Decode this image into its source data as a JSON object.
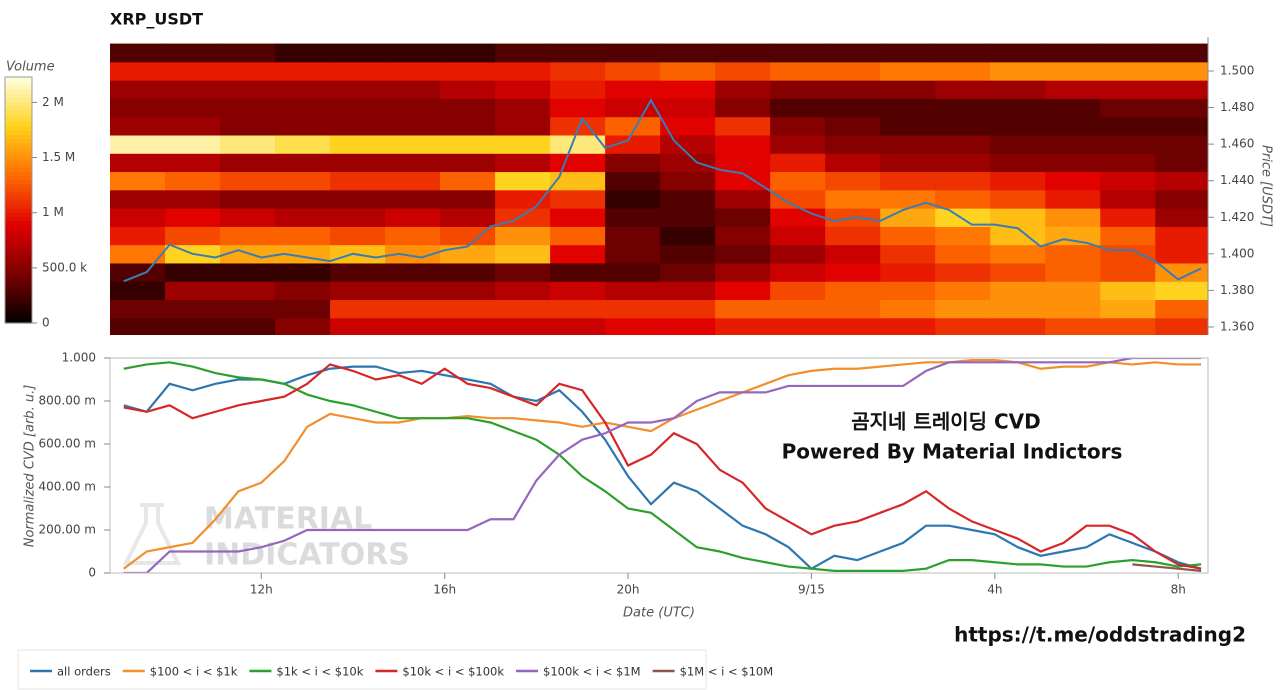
{
  "chart_data": [
    {
      "type": "heatmap",
      "title": "XRP_USDT",
      "colorbar_title": "Volume",
      "ylabel": "Price [USDT]",
      "colorscale": [
        "#000000",
        "#7a0000",
        "#e00000",
        "#ff6a00",
        "#ffd21a",
        "#ffffe0"
      ],
      "zlim": [
        0,
        2230000
      ],
      "zticks": [
        0,
        {
          "value": 500000,
          "label": "500.0 k"
        },
        {
          "value": 1000000,
          "label": "1 M"
        },
        {
          "value": 1500000,
          "label": "1.5 M"
        },
        {
          "value": 2000000,
          "label": "2 M"
        }
      ],
      "xlim": [
        8.7,
        32.65
      ],
      "ylim": [
        1.3556,
        1.5186
      ],
      "yticks": [
        {
          "value": 1.36,
          "label": "1.360"
        },
        {
          "value": 1.38,
          "label": "1.380"
        },
        {
          "value": 1.4,
          "label": "1.400"
        },
        {
          "value": 1.42,
          "label": "1.420"
        },
        {
          "value": 1.44,
          "label": "1.440"
        },
        {
          "value": 1.46,
          "label": "1.460"
        },
        {
          "value": 1.48,
          "label": "1.480"
        },
        {
          "value": 1.5,
          "label": "1.500"
        }
      ],
      "x": [
        9.3,
        10.5,
        11.7,
        12.9,
        14.1,
        15.3,
        16.5,
        17.7,
        18.9,
        20.1,
        21.3,
        22.5,
        23.7,
        24.9,
        26.1,
        27.3,
        28.5,
        29.7,
        30.9,
        32.1
      ],
      "y": [
        1.36,
        1.37,
        1.38,
        1.39,
        1.4,
        1.41,
        1.42,
        1.43,
        1.44,
        1.45,
        1.46,
        1.47,
        1.48,
        1.49,
        1.5,
        1.51
      ],
      "z": [
        [
          300000,
          300000,
          300000,
          500000,
          800000,
          800000,
          800000,
          800000,
          800000,
          900000,
          900000,
          1000000,
          1000000,
          1000000,
          1000000,
          1100000,
          1100000,
          1200000,
          1200000,
          1100000
        ],
        [
          400000,
          400000,
          400000,
          400000,
          1100000,
          1100000,
          1100000,
          1100000,
          1100000,
          1100000,
          1100000,
          1300000,
          1300000,
          1300000,
          1400000,
          1500000,
          1500000,
          1500000,
          1600000,
          1300000
        ],
        [
          200000,
          600000,
          600000,
          500000,
          600000,
          600000,
          600000,
          700000,
          800000,
          700000,
          700000,
          900000,
          1200000,
          1300000,
          1300000,
          1400000,
          1500000,
          1500000,
          1700000,
          1800000
        ],
        [
          300000,
          200000,
          200000,
          200000,
          300000,
          300000,
          300000,
          400000,
          300000,
          300000,
          400000,
          600000,
          800000,
          900000,
          1000000,
          1100000,
          1200000,
          1300000,
          1200000,
          1500000
        ],
        [
          1400000,
          1800000,
          1600000,
          1600000,
          1700000,
          1500000,
          1600000,
          1700000,
          900000,
          400000,
          300000,
          400000,
          600000,
          800000,
          1100000,
          1300000,
          1400000,
          1300000,
          1200000,
          1000000
        ],
        [
          1000000,
          1200000,
          1300000,
          1300000,
          1200000,
          1300000,
          1200000,
          1500000,
          1300000,
          400000,
          200000,
          500000,
          800000,
          1100000,
          1300000,
          1400000,
          1700000,
          1600000,
          1300000,
          1000000
        ],
        [
          800000,
          900000,
          800000,
          700000,
          700000,
          800000,
          700000,
          1100000,
          900000,
          300000,
          300000,
          400000,
          900000,
          1200000,
          1600000,
          1800000,
          1700000,
          1500000,
          1000000,
          600000
        ],
        [
          600000,
          600000,
          500000,
          500000,
          500000,
          500000,
          500000,
          1000000,
          1100000,
          200000,
          300000,
          600000,
          1200000,
          1400000,
          1400000,
          1300000,
          1200000,
          1000000,
          700000,
          500000
        ],
        [
          1400000,
          1300000,
          1200000,
          1200000,
          1100000,
          1100000,
          1300000,
          1800000,
          1700000,
          300000,
          500000,
          900000,
          1300000,
          1200000,
          1100000,
          1100000,
          1000000,
          900000,
          800000,
          700000
        ],
        [
          700000,
          700000,
          600000,
          600000,
          600000,
          600000,
          600000,
          700000,
          900000,
          500000,
          600000,
          900000,
          1000000,
          700000,
          600000,
          600000,
          500000,
          500000,
          500000,
          400000
        ],
        [
          2100000,
          2100000,
          2000000,
          1900000,
          1800000,
          1800000,
          1800000,
          1800000,
          2000000,
          1000000,
          700000,
          900000,
          600000,
          500000,
          500000,
          500000,
          400000,
          400000,
          400000,
          400000
        ],
        [
          600000,
          600000,
          500000,
          500000,
          500000,
          500000,
          500000,
          600000,
          1100000,
          1300000,
          900000,
          1100000,
          500000,
          400000,
          300000,
          300000,
          300000,
          300000,
          300000,
          300000
        ],
        [
          500000,
          500000,
          500000,
          500000,
          500000,
          500000,
          500000,
          600000,
          900000,
          800000,
          800000,
          500000,
          300000,
          300000,
          300000,
          300000,
          300000,
          300000,
          400000,
          400000
        ],
        [
          600000,
          600000,
          600000,
          600000,
          600000,
          600000,
          700000,
          800000,
          1000000,
          900000,
          900000,
          600000,
          500000,
          500000,
          500000,
          600000,
          600000,
          700000,
          700000,
          700000
        ],
        [
          1000000,
          1000000,
          1000000,
          1000000,
          1000000,
          1000000,
          1000000,
          1000000,
          1100000,
          1200000,
          1300000,
          1200000,
          1300000,
          1300000,
          1400000,
          1400000,
          1500000,
          1500000,
          1500000,
          1500000
        ],
        [
          300000,
          300000,
          300000,
          200000,
          200000,
          200000,
          200000,
          300000,
          300000,
          300000,
          300000,
          300000,
          300000,
          300000,
          300000,
          300000,
          300000,
          300000,
          300000,
          300000
        ]
      ],
      "price": {
        "color": "#3a7db5",
        "x": [
          9,
          9.5,
          10,
          10.5,
          11,
          11.5,
          12,
          12.5,
          13,
          13.5,
          14,
          14.5,
          15,
          15.5,
          16,
          16.5,
          17,
          17.5,
          18,
          18.5,
          19,
          19.5,
          20,
          20.5,
          21,
          21.5,
          22,
          22.5,
          23,
          23.5,
          24,
          24.5,
          25,
          25.5,
          26,
          26.5,
          27,
          27.5,
          28,
          28.5,
          29,
          29.5,
          30,
          30.5,
          31,
          31.5,
          32,
          32.5
        ],
        "values": [
          1.385,
          1.39,
          1.405,
          1.4,
          1.398,
          1.402,
          1.398,
          1.4,
          1.398,
          1.396,
          1.4,
          1.398,
          1.4,
          1.398,
          1.402,
          1.404,
          1.415,
          1.418,
          1.426,
          1.442,
          1.474,
          1.458,
          1.462,
          1.484,
          1.462,
          1.45,
          1.446,
          1.444,
          1.436,
          1.428,
          1.422,
          1.418,
          1.42,
          1.418,
          1.424,
          1.428,
          1.424,
          1.416,
          1.416,
          1.414,
          1.404,
          1.408,
          1.406,
          1.402,
          1.402,
          1.396,
          1.386,
          1.392
        ]
      }
    },
    {
      "type": "line",
      "ylabel": "Normalized CVD [arb. u.]",
      "xlabel": "Date (UTC)",
      "annotations": [
        "곰지네 트레이딩 CVD",
        "Powered By Material Indictors"
      ],
      "watermark": [
        "MATERIAL",
        "INDICATORS"
      ],
      "link": "https://t.me/oddstrading2",
      "xlim": [
        8.7,
        32.65
      ],
      "ylim": [
        0,
        1
      ],
      "xticks": [
        {
          "value": 12,
          "label": "12h"
        },
        {
          "value": 16,
          "label": "16h"
        },
        {
          "value": 20,
          "label": "20h"
        },
        {
          "value": 24,
          "label": "9/15"
        },
        {
          "value": 28,
          "label": "4h"
        },
        {
          "value": 32,
          "label": "8h"
        }
      ],
      "yticks": [
        0,
        {
          "value": 0.2,
          "label": "200.00 m"
        },
        {
          "value": 0.4,
          "label": "400.00 m"
        },
        {
          "value": 0.6,
          "label": "600.00 m"
        },
        {
          "value": 0.8,
          "label": "800.00 m"
        },
        {
          "value": 1,
          "label": "1.000"
        }
      ],
      "x": [
        9,
        9.5,
        10,
        10.5,
        11,
        11.5,
        12,
        12.5,
        13,
        13.5,
        14,
        14.5,
        15,
        15.5,
        16,
        16.5,
        17,
        17.5,
        18,
        18.5,
        19,
        19.5,
        20,
        20.5,
        21,
        21.5,
        22,
        22.5,
        23,
        23.5,
        24,
        24.5,
        25,
        25.5,
        26,
        26.5,
        27,
        27.5,
        28,
        28.5,
        29,
        29.5,
        30,
        30.5,
        31,
        31.5,
        32,
        32.5
      ],
      "series": [
        {
          "name": "all orders",
          "color": "#2c77b0",
          "values": [
            0.78,
            0.75,
            0.88,
            0.85,
            0.88,
            0.9,
            0.9,
            0.88,
            0.92,
            0.95,
            0.96,
            0.96,
            0.93,
            0.94,
            0.92,
            0.9,
            0.88,
            0.82,
            0.8,
            0.85,
            0.75,
            0.62,
            0.45,
            0.32,
            0.42,
            0.38,
            0.3,
            0.22,
            0.18,
            0.12,
            0.02,
            0.08,
            0.06,
            0.1,
            0.14,
            0.22,
            0.22,
            0.2,
            0.18,
            0.12,
            0.08,
            0.1,
            0.12,
            0.18,
            0.14,
            0.1,
            0.05,
            0.02
          ]
        },
        {
          "name": "$100 < i < $1k",
          "color": "#f28e2b",
          "values": [
            0.02,
            0.1,
            0.12,
            0.14,
            0.25,
            0.38,
            0.42,
            0.52,
            0.68,
            0.74,
            0.72,
            0.7,
            0.7,
            0.72,
            0.72,
            0.73,
            0.72,
            0.72,
            0.71,
            0.7,
            0.68,
            0.7,
            0.68,
            0.66,
            0.72,
            0.76,
            0.8,
            0.84,
            0.88,
            0.92,
            0.94,
            0.95,
            0.95,
            0.96,
            0.97,
            0.98,
            0.98,
            0.99,
            0.99,
            0.98,
            0.95,
            0.96,
            0.96,
            0.98,
            0.97,
            0.98,
            0.97,
            0.97
          ]
        },
        {
          "name": "$1k < i < $10k",
          "color": "#2ca02c",
          "values": [
            0.95,
            0.97,
            0.98,
            0.96,
            0.93,
            0.91,
            0.9,
            0.88,
            0.83,
            0.8,
            0.78,
            0.75,
            0.72,
            0.72,
            0.72,
            0.72,
            0.7,
            0.66,
            0.62,
            0.55,
            0.45,
            0.38,
            0.3,
            0.28,
            0.2,
            0.12,
            0.1,
            0.07,
            0.05,
            0.03,
            0.02,
            0.01,
            0.01,
            0.01,
            0.01,
            0.02,
            0.06,
            0.06,
            0.05,
            0.04,
            0.04,
            0.03,
            0.03,
            0.05,
            0.06,
            0.05,
            0.03,
            0.04
          ]
        },
        {
          "name": "$10k < i < $100k",
          "color": "#d62728",
          "values": [
            0.77,
            0.75,
            0.78,
            0.72,
            0.75,
            0.78,
            0.8,
            0.82,
            0.88,
            0.97,
            0.94,
            0.9,
            0.92,
            0.88,
            0.95,
            0.88,
            0.86,
            0.82,
            0.78,
            0.88,
            0.85,
            0.7,
            0.5,
            0.55,
            0.65,
            0.6,
            0.48,
            0.42,
            0.3,
            0.24,
            0.18,
            0.22,
            0.24,
            0.28,
            0.32,
            0.38,
            0.3,
            0.24,
            0.2,
            0.16,
            0.1,
            0.14,
            0.22,
            0.22,
            0.18,
            0.1,
            0.04,
            0.02
          ]
        },
        {
          "name": "$100k < i < $1M",
          "color": "#9467bd",
          "values": [
            0,
            0,
            0.1,
            0.1,
            0.1,
            0.1,
            0.12,
            0.15,
            0.2,
            0.2,
            0.2,
            0.2,
            0.2,
            0.2,
            0.2,
            0.2,
            0.25,
            0.25,
            0.43,
            0.55,
            0.62,
            0.65,
            0.7,
            0.7,
            0.72,
            0.8,
            0.84,
            0.84,
            0.84,
            0.87,
            0.87,
            0.87,
            0.87,
            0.87,
            0.87,
            0.94,
            0.98,
            0.98,
            0.98,
            0.98,
            0.98,
            0.98,
            0.98,
            0.98,
            1,
            1,
            1,
            1
          ]
        },
        {
          "name": "$1M < i < $10M",
          "color": "#8c564b",
          "values": [
            null,
            null,
            null,
            null,
            null,
            null,
            null,
            null,
            null,
            null,
            null,
            null,
            null,
            null,
            null,
            null,
            null,
            null,
            null,
            null,
            null,
            null,
            null,
            null,
            null,
            null,
            null,
            null,
            null,
            null,
            null,
            null,
            null,
            null,
            null,
            null,
            null,
            null,
            null,
            null,
            null,
            null,
            null,
            null,
            0.04,
            0.03,
            0.02,
            0.01
          ]
        }
      ]
    }
  ]
}
